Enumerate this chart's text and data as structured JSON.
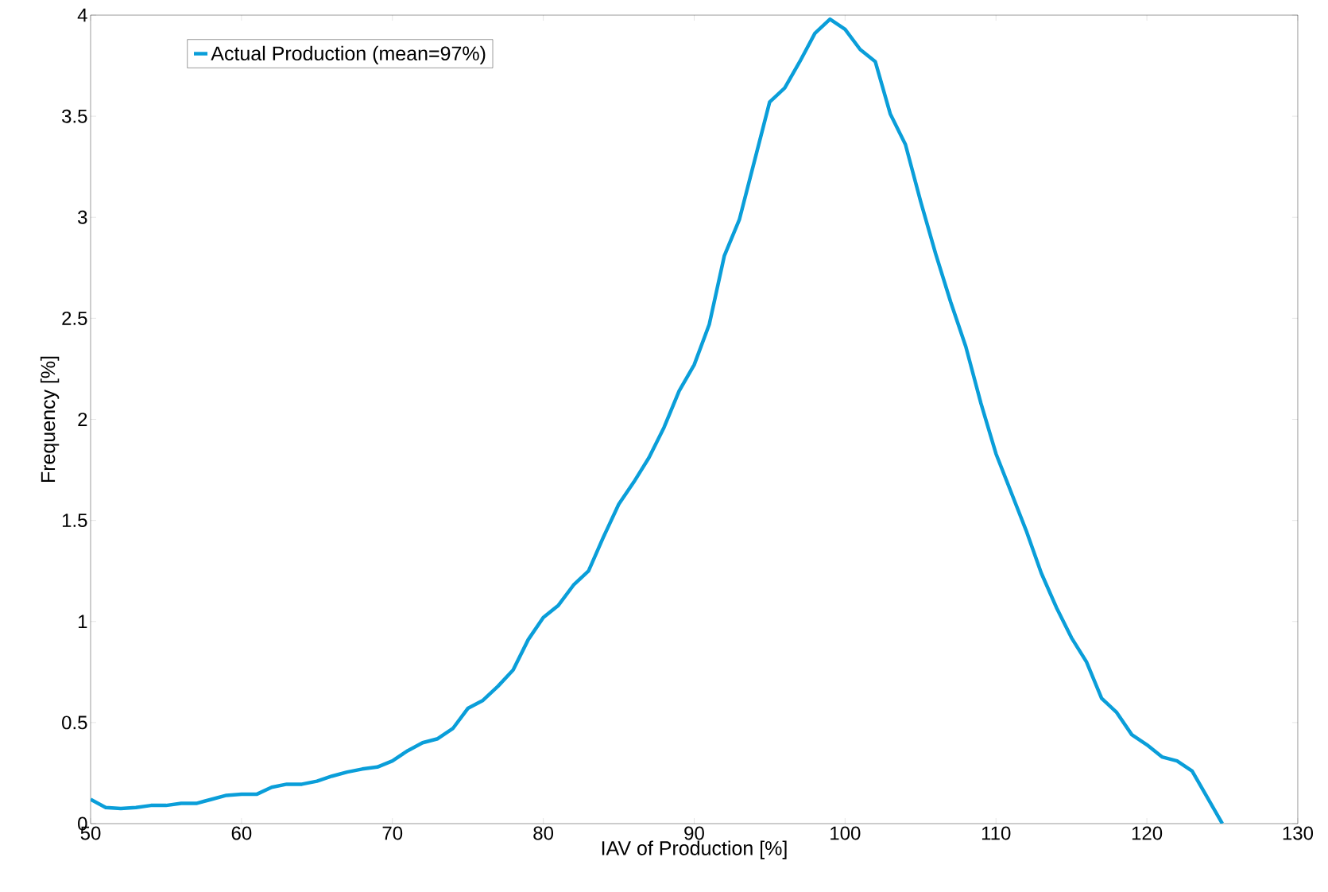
{
  "chart_data": {
    "type": "line",
    "xlabel": "IAV of Production [%]",
    "ylabel": "Frequency [%]",
    "x": [
      50,
      51,
      52,
      53,
      54,
      55,
      56,
      57,
      58,
      59,
      60,
      61,
      62,
      63,
      64,
      65,
      66,
      67,
      68,
      69,
      70,
      71,
      72,
      73,
      74,
      75,
      76,
      77,
      78,
      79,
      80,
      81,
      82,
      83,
      84,
      85,
      86,
      87,
      88,
      89,
      90,
      91,
      92,
      93,
      94,
      95,
      96,
      97,
      98,
      99,
      100,
      101,
      102,
      103,
      104,
      105,
      106,
      107,
      108,
      109,
      110,
      111,
      112,
      113,
      114,
      115,
      116,
      117,
      118,
      119,
      120,
      121,
      122,
      123,
      124,
      125
    ],
    "series": [
      {
        "name": "Actual Production (mean=97%)",
        "color": "#0a9ed9",
        "values": [
          0.12,
          0.08,
          0.075,
          0.08,
          0.09,
          0.09,
          0.1,
          0.1,
          0.12,
          0.14,
          0.145,
          0.145,
          0.18,
          0.195,
          0.195,
          0.21,
          0.235,
          0.255,
          0.27,
          0.28,
          0.31,
          0.36,
          0.4,
          0.42,
          0.47,
          0.57,
          0.61,
          0.68,
          0.76,
          0.91,
          1.02,
          1.08,
          1.18,
          1.25,
          1.42,
          1.58,
          1.69,
          1.81,
          1.96,
          2.14,
          2.27,
          2.47,
          2.81,
          2.99,
          3.28,
          3.57,
          3.64,
          3.77,
          3.91,
          3.98,
          3.93,
          3.83,
          3.77,
          3.51,
          3.36,
          3.08,
          2.82,
          2.58,
          2.36,
          2.08,
          1.83,
          1.64,
          1.45,
          1.24,
          1.07,
          0.92,
          0.8,
          0.62,
          0.55,
          0.44,
          0.39,
          0.33,
          0.31,
          0.26,
          0.13,
          0.0
        ]
      }
    ],
    "xlim": [
      50,
      130
    ],
    "ylim": [
      0,
      4
    ],
    "xticks": [
      50,
      60,
      70,
      80,
      90,
      100,
      110,
      120,
      130
    ],
    "yticks": [
      0,
      0.5,
      1,
      1.5,
      2,
      2.5,
      3,
      3.5,
      4
    ],
    "legend": "top left"
  }
}
